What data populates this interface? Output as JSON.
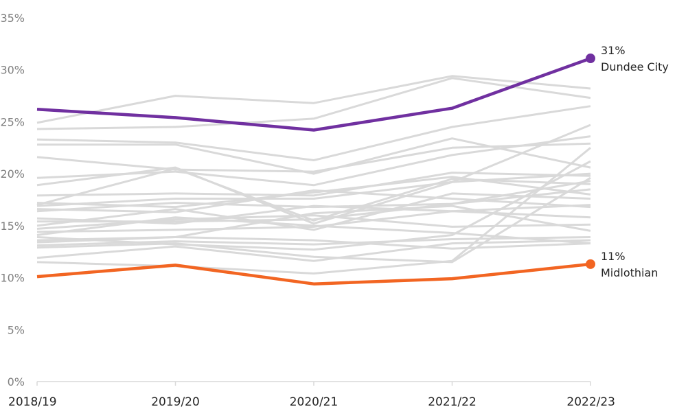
{
  "chart_data": {
    "type": "line",
    "title": "",
    "xlabel": "",
    "ylabel": "",
    "categories": [
      "2018/19",
      "2019/20",
      "2020/21",
      "2021/22",
      "2022/23"
    ],
    "ylim": [
      0,
      35
    ],
    "y_ticks": [
      "0%",
      "5%",
      "10%",
      "15%",
      "20%",
      "25%",
      "30%",
      "35%"
    ],
    "grid": false,
    "legend": "none",
    "highlight_series": [
      {
        "name": "Dundee City",
        "values": [
          26.2,
          25.4,
          24.2,
          26.3,
          31.1
        ],
        "color": "#7030a0",
        "end_label": "31%"
      },
      {
        "name": "Midlothian",
        "values": [
          10.1,
          11.2,
          9.4,
          9.9,
          11.3
        ],
        "color": "#f26522",
        "end_label": "11%"
      }
    ],
    "background_series_color": "#d9d9d9",
    "background_series": [
      [
        24.9,
        27.5,
        26.8,
        29.4,
        28.2
      ],
      [
        24.3,
        24.5,
        25.3,
        29.2,
        27.3
      ],
      [
        23.3,
        23.0,
        21.3,
        24.5,
        26.5
      ],
      [
        22.8,
        22.8,
        20.0,
        23.4,
        20.6
      ],
      [
        21.6,
        20.4,
        20.2,
        22.5,
        22.9
      ],
      [
        19.6,
        20.2,
        18.9,
        21.8,
        23.6
      ],
      [
        18.9,
        20.6,
        15.2,
        19.2,
        24.7
      ],
      [
        17.9,
        18.1,
        17.9,
        20.1,
        19.8
      ],
      [
        17.2,
        16.8,
        18.2,
        19.7,
        18.0
      ],
      [
        17.0,
        20.5,
        15.5,
        19.5,
        19.0
      ],
      [
        16.9,
        17.6,
        17.6,
        19.2,
        20.0
      ],
      [
        16.6,
        16.3,
        18.4,
        17.6,
        16.8
      ],
      [
        16.4,
        17.2,
        16.8,
        17.1,
        18.5
      ],
      [
        15.7,
        15.2,
        16.9,
        16.4,
        17.0
      ],
      [
        15.4,
        15.4,
        15.6,
        17.1,
        19.3
      ],
      [
        15.0,
        16.6,
        14.6,
        18.1,
        17.6
      ],
      [
        14.7,
        15.6,
        16.0,
        14.9,
        15.1
      ],
      [
        14.4,
        14.6,
        14.9,
        16.4,
        15.8
      ],
      [
        14.1,
        15.8,
        15.0,
        14.3,
        13.3
      ],
      [
        13.9,
        13.2,
        12.7,
        14.1,
        21.2
      ],
      [
        13.6,
        13.9,
        16.2,
        16.9,
        14.5
      ],
      [
        13.4,
        13.9,
        13.6,
        12.8,
        13.3
      ],
      [
        13.1,
        13.5,
        13.2,
        13.7,
        13.9
      ],
      [
        12.9,
        13.3,
        12.0,
        11.5,
        19.6
      ],
      [
        11.9,
        13.0,
        11.6,
        13.3,
        13.6
      ],
      [
        11.5,
        11.1,
        10.4,
        11.6,
        22.5
      ]
    ]
  }
}
